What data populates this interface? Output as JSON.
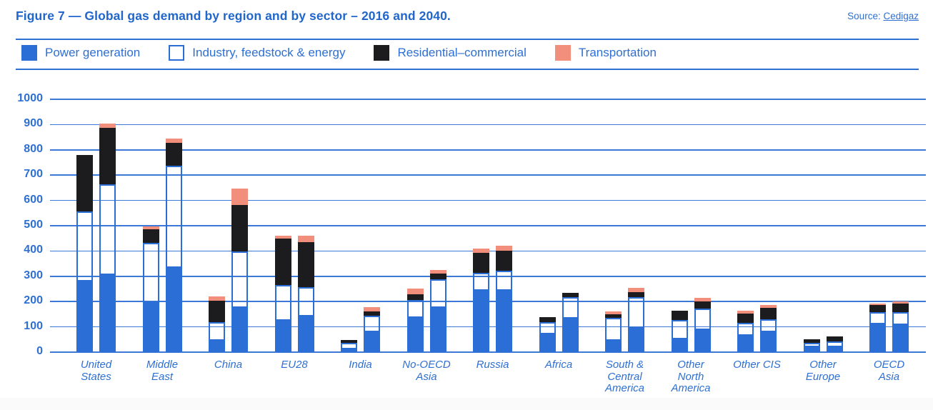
{
  "header": {
    "title": "Figure 7 — Global gas demand by region and by sector – 2016 and 2040.",
    "source_label": "Source:",
    "source_link": "Cedigaz"
  },
  "legend": [
    {
      "label": "Power generation",
      "color": "#2b6fd6",
      "border": "#2b6fd6"
    },
    {
      "label": "Industry, feedstock & energy",
      "color": "#ffffff",
      "border": "#2b6fd6"
    },
    {
      "label": "Residential–commercial",
      "color": "#1c1c1e",
      "border": "#1c1c1e"
    },
    {
      "label": "Transportation",
      "color": "#f28e7c",
      "border": "#f28e7c"
    }
  ],
  "colors": {
    "accent_blue": "#2b6fd6",
    "grid_blue": "#3c78d8",
    "text_blue": "#2e6fd2",
    "residential_black": "#1c1c1e",
    "transport_salmon": "#f28e7c"
  },
  "chart_data": {
    "type": "bar",
    "stacked": true,
    "title": "Global gas demand by region and by sector – 2016 and 2040",
    "xlabel": "",
    "ylabel": "",
    "ylim": [
      0,
      1000
    ],
    "ytick_step": 100,
    "grid": true,
    "legend_position": "top",
    "years": [
      "2016",
      "2040"
    ],
    "series_names": [
      "Power generation",
      "Industry, feedstock & energy",
      "Residential–commercial",
      "Transportation"
    ],
    "regions": [
      {
        "name": "United States",
        "lines": [
          "United",
          "States"
        ],
        "y2016": [
          280,
          276,
          223,
          0
        ],
        "y2040": [
          306,
          360,
          222,
          17
        ]
      },
      {
        "name": "Middle East",
        "lines": [
          "Middle",
          "East"
        ],
        "y2016": [
          194,
          238,
          54,
          10
        ],
        "y2040": [
          332,
          404,
          90,
          17
        ]
      },
      {
        "name": "China",
        "lines": [
          "China"
        ],
        "y2016": [
          45,
          74,
          85,
          16
        ],
        "y2040": [
          176,
          224,
          184,
          65
        ]
      },
      {
        "name": "EU28",
        "lines": [
          "EU28"
        ],
        "y2016": [
          124,
          142,
          183,
          11
        ],
        "y2040": [
          142,
          115,
          178,
          26
        ]
      },
      {
        "name": "India",
        "lines": [
          "India"
        ],
        "y2016": [
          12,
          26,
          12,
          0
        ],
        "y2040": [
          78,
          66,
          17,
          18
        ]
      },
      {
        "name": "No-OECD Asia",
        "lines": [
          "No-OECD",
          "Asia"
        ],
        "y2016": [
          136,
          70,
          24,
          22
        ],
        "y2040": [
          176,
          112,
          22,
          15
        ]
      },
      {
        "name": "Russia",
        "lines": [
          "Russia"
        ],
        "y2016": [
          242,
          70,
          80,
          17
        ],
        "y2040": [
          242,
          78,
          80,
          21
        ]
      },
      {
        "name": "Africa",
        "lines": [
          "Africa"
        ],
        "y2016": [
          72,
          47,
          21,
          0
        ],
        "y2040": [
          132,
          86,
          16,
          0
        ]
      },
      {
        "name": "South & Central America",
        "lines": [
          "South &",
          "Central",
          "America"
        ],
        "y2016": [
          45,
          90,
          14,
          11
        ],
        "y2040": [
          92,
          125,
          20,
          18
        ]
      },
      {
        "name": "Other North America",
        "lines": [
          "Other",
          "North",
          "America"
        ],
        "y2016": [
          50,
          75,
          38,
          0
        ],
        "y2040": [
          88,
          86,
          28,
          13
        ]
      },
      {
        "name": "Other CIS",
        "lines": [
          "Other CIS"
        ],
        "y2016": [
          64,
          50,
          38,
          11
        ],
        "y2040": [
          78,
          50,
          45,
          12
        ]
      },
      {
        "name": "Other Europe",
        "lines": [
          "Other",
          "Europe"
        ],
        "y2016": [
          20,
          16,
          13,
          0
        ],
        "y2040": [
          19,
          23,
          21,
          0
        ]
      },
      {
        "name": "OECD Asia",
        "lines": [
          "OECD",
          "Asia"
        ],
        "y2016": [
          111,
          48,
          28,
          6
        ],
        "y2040": [
          107,
          52,
          35,
          9
        ]
      }
    ]
  }
}
